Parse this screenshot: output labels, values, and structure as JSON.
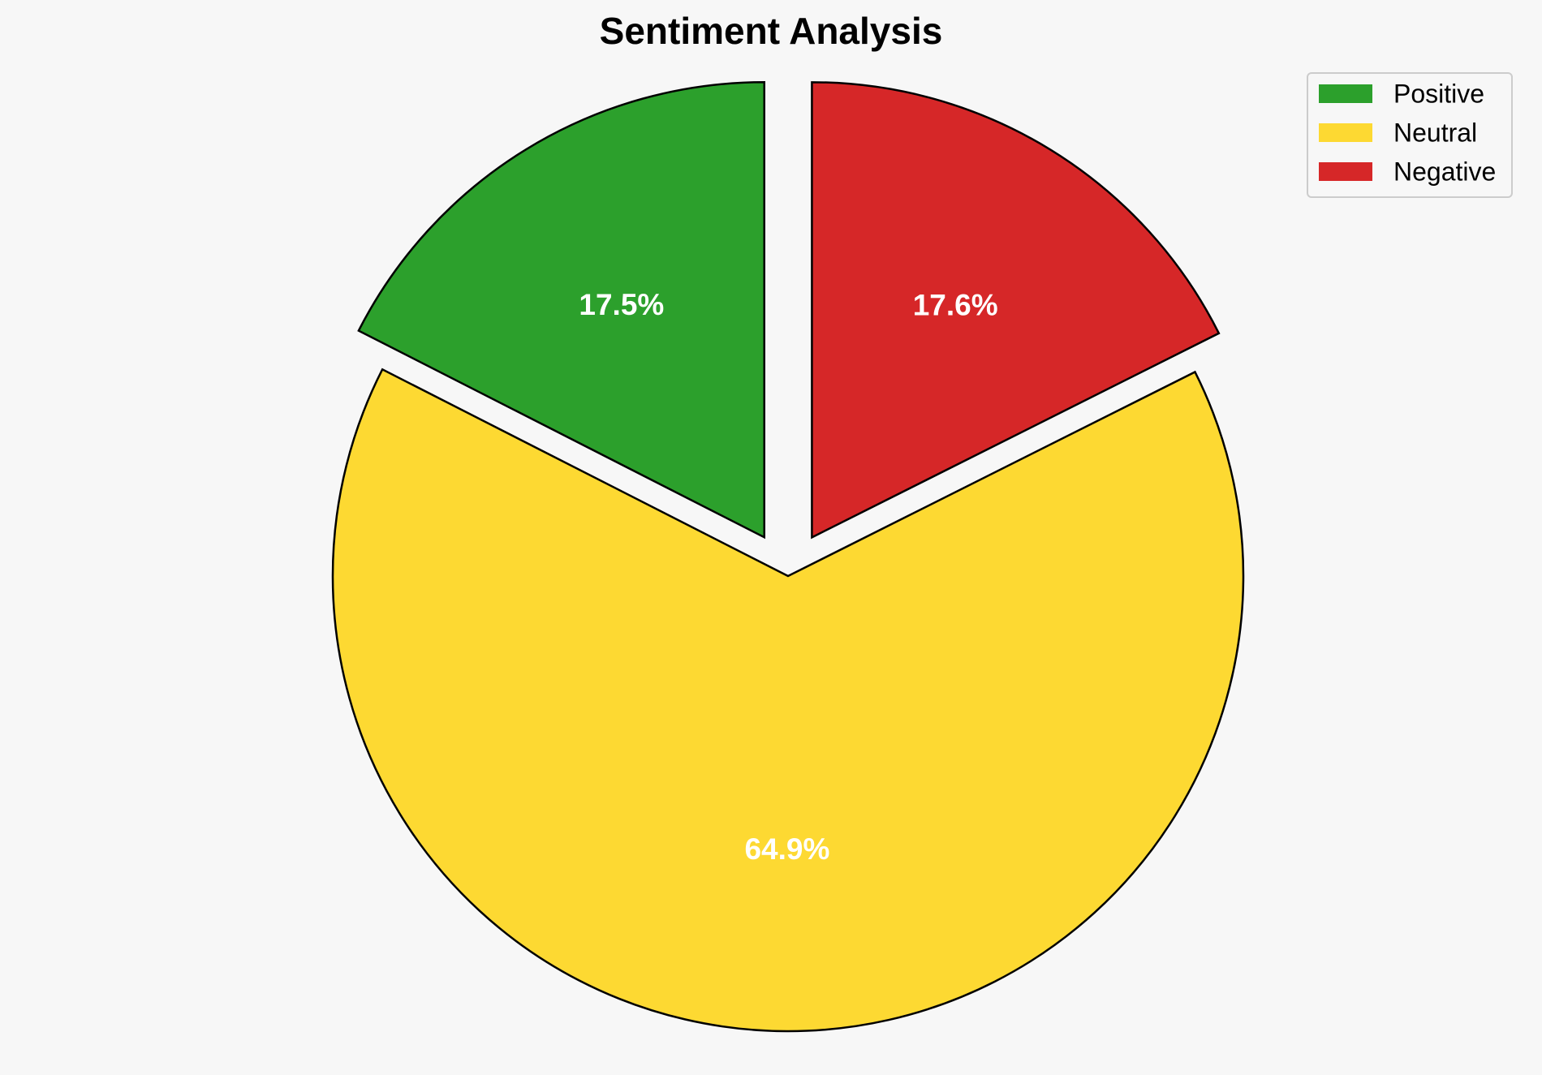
{
  "chart_data": {
    "type": "pie",
    "title": "Sentiment Analysis",
    "categories": [
      "Positive",
      "Neutral",
      "Negative"
    ],
    "values": [
      17.5,
      64.9,
      17.6
    ],
    "labels": [
      "17.5%",
      "64.9%",
      "17.6%"
    ],
    "colors": [
      "#2ca02c",
      "#fdd932",
      "#d62728"
    ],
    "exploded": [
      "Positive",
      "Negative"
    ],
    "label_color": "#ffffff",
    "edge_color": "#000000",
    "legend": {
      "placement": "top-right",
      "entries": [
        "Positive",
        "Neutral",
        "Negative"
      ]
    },
    "background": "#f7f7f7"
  }
}
